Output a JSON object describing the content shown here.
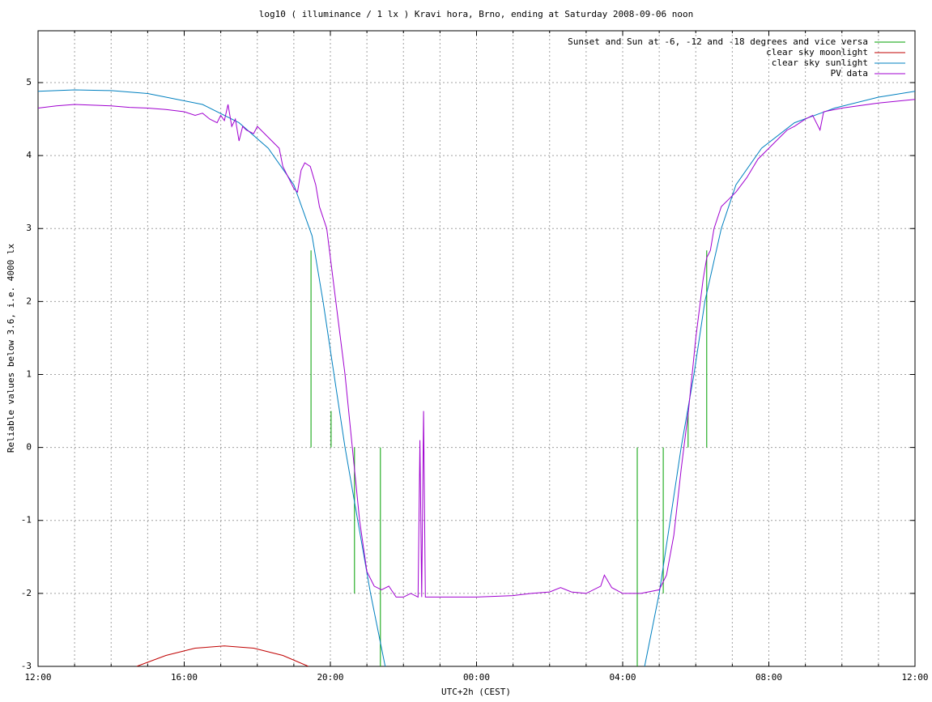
{
  "chart_data": {
    "type": "line",
    "title": "log10 ( illuminance / 1 lx ) Kravi hora, Brno, ending at Saturday 2008-09-06 noon",
    "xlabel": "UTC+2h (CEST)",
    "ylabel": "Reliable values below 3.6, i.e. 4000 lx",
    "xlim": [
      0,
      24
    ],
    "xticks": [
      {
        "value": 0,
        "label": "12:00"
      },
      {
        "value": 4,
        "label": "16:00"
      },
      {
        "value": 8,
        "label": "20:00"
      },
      {
        "value": 12,
        "label": "00:00"
      },
      {
        "value": 16,
        "label": "04:00"
      },
      {
        "value": 20,
        "label": "08:00"
      },
      {
        "value": 24,
        "label": "12:00"
      }
    ],
    "x_minor_ticks": [
      1,
      2,
      3,
      5,
      6,
      7,
      9,
      10,
      11,
      13,
      14,
      15,
      17,
      18,
      19,
      21,
      22,
      23
    ],
    "ylim": [
      -3,
      5.71
    ],
    "yticks": [
      -3,
      -2,
      -1,
      0,
      1,
      2,
      3,
      4,
      5
    ],
    "grid": true,
    "legend": "top-right",
    "series": [
      {
        "name": "Sunset and Sun at -6, -12 and -18 degrees and vice versa",
        "color": "#00a000",
        "x": [
          7.47,
          7.47,
          7.47,
          8.02,
          8.02,
          8.02,
          8.66,
          8.66,
          8.66,
          9.37,
          9.37,
          9.37,
          16.4,
          16.4,
          16.4,
          17.11,
          17.11,
          17.11,
          17.79,
          17.79,
          17.79,
          18.3,
          18.3
        ],
        "values": [
          0,
          2.7,
          null,
          0,
          0.5,
          null,
          0,
          -2,
          null,
          0,
          -3,
          null,
          0,
          -3,
          null,
          0,
          -2,
          null,
          0,
          0.5,
          null,
          0,
          2.7
        ]
      },
      {
        "name": "clear sky moonlight",
        "color": "#c00000",
        "x": [
          2.7,
          3.5,
          4.3,
          5.1,
          5.9,
          6.7,
          7.4
        ],
        "values": [
          -3,
          -2.85,
          -2.75,
          -2.72,
          -2.75,
          -2.85,
          -3
        ]
      },
      {
        "name": "clear sky sunlight",
        "color": "#0080c0",
        "x": [
          0,
          1,
          2,
          3,
          4.5,
          5.5,
          6.3,
          7.0,
          7.5,
          7.8,
          8.1,
          8.4,
          8.75,
          9.1,
          9.5,
          12,
          16.6,
          17.0,
          17.3,
          17.6,
          17.95,
          18.25,
          18.7,
          19.1,
          19.8,
          20.7,
          21.8,
          23,
          24
        ],
        "values": [
          4.88,
          4.9,
          4.89,
          4.85,
          4.7,
          4.45,
          4.1,
          3.6,
          2.9,
          2.0,
          1.0,
          0,
          -1,
          -2,
          -3,
          null,
          -3,
          -2,
          -1,
          0,
          1,
          2,
          3,
          3.6,
          4.1,
          4.45,
          4.65,
          4.8,
          4.88
        ]
      },
      {
        "name": "PV data",
        "color": "#a000d0",
        "x": [
          0,
          0.5,
          1,
          1.5,
          2,
          2.5,
          3,
          3.5,
          4,
          4.3,
          4.5,
          4.7,
          4.9,
          5.0,
          5.1,
          5.2,
          5.3,
          5.4,
          5.5,
          5.6,
          5.7,
          5.9,
          6.0,
          6.2,
          6.4,
          6.6,
          6.7,
          6.8,
          6.9,
          7.0,
          7.1,
          7.2,
          7.3,
          7.45,
          7.6,
          7.7,
          7.9,
          8.0,
          8.2,
          8.4,
          8.6,
          8.8,
          9.0,
          9.2,
          9.4,
          9.6,
          9.8,
          10.0,
          10.2,
          10.4,
          10.45,
          10.5,
          10.55,
          10.6,
          11,
          12,
          13,
          13.5,
          14,
          14.3,
          14.6,
          15,
          15.4,
          15.5,
          15.7,
          16,
          16.5,
          17,
          17.2,
          17.4,
          17.6,
          17.8,
          18.0,
          18.2,
          18.3,
          18.4,
          18.5,
          18.7,
          18.9,
          19.1,
          19.4,
          19.7,
          20,
          20.3,
          20.5,
          20.7,
          21,
          21.2,
          21.4,
          21.5,
          22,
          23,
          24
        ],
        "values": [
          4.65,
          4.68,
          4.7,
          4.69,
          4.68,
          4.66,
          4.65,
          4.63,
          4.6,
          4.55,
          4.58,
          4.5,
          4.45,
          4.55,
          4.48,
          4.7,
          4.4,
          4.5,
          4.2,
          4.4,
          4.35,
          4.3,
          4.4,
          4.3,
          4.2,
          4.1,
          3.85,
          3.75,
          3.65,
          3.55,
          3.5,
          3.8,
          3.9,
          3.85,
          3.6,
          3.3,
          3.0,
          2.6,
          1.8,
          1.0,
          0,
          -1,
          -1.7,
          -1.9,
          -1.95,
          -1.9,
          -2.05,
          -2.05,
          -2.0,
          -2.05,
          0.1,
          -2.05,
          0.5,
          -2.05,
          -2.05,
          -2.05,
          -2.03,
          -2.0,
          -1.98,
          -1.92,
          -1.98,
          -2.0,
          -1.9,
          -1.75,
          -1.92,
          -2.0,
          -2.0,
          -1.95,
          -1.75,
          -1.2,
          -0.3,
          0.5,
          1.5,
          2.3,
          2.6,
          2.7,
          3.0,
          3.3,
          3.4,
          3.5,
          3.7,
          3.95,
          4.1,
          4.25,
          4.35,
          4.4,
          4.5,
          4.55,
          4.35,
          4.6,
          4.65,
          4.72,
          4.77
        ]
      }
    ]
  }
}
